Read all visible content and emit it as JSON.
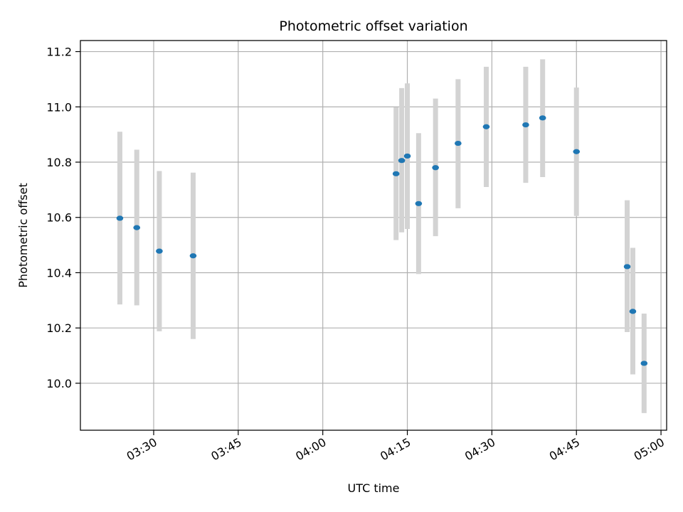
{
  "chart_data": {
    "type": "scatter",
    "title": "Photometric offset variation",
    "xlabel": "UTC time",
    "ylabel": "Photometric offset",
    "grid": true,
    "xlim": [
      "03:17",
      "05:01"
    ],
    "ylim": [
      9.83,
      11.24
    ],
    "x_ticks": [
      "03:30",
      "03:45",
      "04:00",
      "04:15",
      "04:30",
      "04:45",
      "05:00"
    ],
    "y_ticks": [
      10.0,
      10.2,
      10.4,
      10.6,
      10.8,
      11.0,
      11.2
    ],
    "y_tick_labels": [
      "10.0",
      "10.2",
      "10.4",
      "10.6",
      "10.8",
      "11.0",
      "11.2"
    ],
    "marker_color": "#1f77b4",
    "errorbar_color": "#d3d3d3",
    "series": [
      {
        "points": [
          {
            "x": "03:24",
            "y": 10.597,
            "y_low": 10.285,
            "y_high": 10.91
          },
          {
            "x": "03:27",
            "y": 10.563,
            "y_low": 10.282,
            "y_high": 10.845
          },
          {
            "x": "03:31",
            "y": 10.478,
            "y_low": 10.188,
            "y_high": 10.768
          },
          {
            "x": "03:37",
            "y": 10.461,
            "y_low": 10.16,
            "y_high": 10.762
          },
          {
            "x": "04:13",
            "y": 10.758,
            "y_low": 10.518,
            "y_high": 10.998
          },
          {
            "x": "04:14",
            "y": 10.806,
            "y_low": 10.546,
            "y_high": 11.068
          },
          {
            "x": "04:15",
            "y": 10.822,
            "y_low": 10.558,
            "y_high": 11.085
          },
          {
            "x": "04:17",
            "y": 10.65,
            "y_low": 10.395,
            "y_high": 10.905
          },
          {
            "x": "04:20",
            "y": 10.78,
            "y_low": 10.532,
            "y_high": 11.03
          },
          {
            "x": "04:24",
            "y": 10.868,
            "y_low": 10.633,
            "y_high": 11.1
          },
          {
            "x": "04:29",
            "y": 10.928,
            "y_low": 10.71,
            "y_high": 11.145
          },
          {
            "x": "04:36",
            "y": 10.935,
            "y_low": 10.725,
            "y_high": 11.145
          },
          {
            "x": "04:39",
            "y": 10.96,
            "y_low": 10.746,
            "y_high": 11.172
          },
          {
            "x": "04:45",
            "y": 10.838,
            "y_low": 10.605,
            "y_high": 11.07
          },
          {
            "x": "04:54",
            "y": 10.422,
            "y_low": 10.185,
            "y_high": 10.662
          },
          {
            "x": "04:55",
            "y": 10.26,
            "y_low": 10.032,
            "y_high": 10.49
          },
          {
            "x": "04:57",
            "y": 10.072,
            "y_low": 9.892,
            "y_high": 10.252
          }
        ]
      }
    ]
  }
}
